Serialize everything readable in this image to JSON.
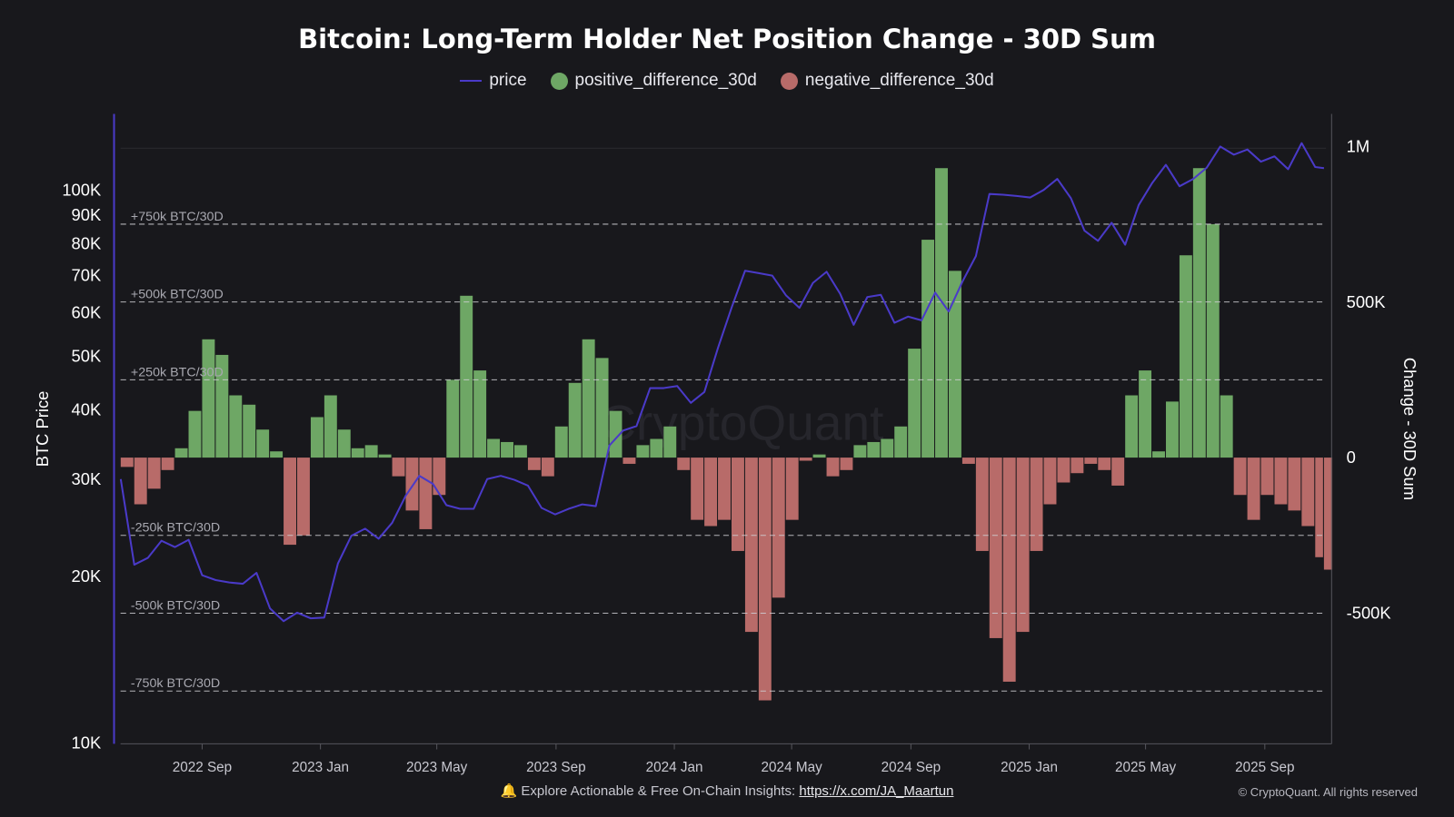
{
  "chart_data": {
    "type": "bar+line",
    "title": "Bitcoin: Long-Term Holder Net Position Change - 30D Sum",
    "legend": [
      "price",
      "positive_difference_30d",
      "negative_difference_30d"
    ],
    "legend_placement": "top-center",
    "left_axis": {
      "label": "BTC Price",
      "scale": "log",
      "range": [
        10000,
        150000
      ],
      "ticks": [
        "10K",
        "20K",
        "30K",
        "40K",
        "50K",
        "60K",
        "70K",
        "80K",
        "90K",
        "100K"
      ],
      "tick_values": [
        10000,
        20000,
        30000,
        40000,
        50000,
        60000,
        70000,
        80000,
        90000,
        100000
      ]
    },
    "right_axis": {
      "label": "Change - 30D Sum",
      "range": [
        -920000,
        1000000
      ],
      "ticks": [
        "1M",
        "500K",
        "0",
        "-500K"
      ],
      "tick_values": [
        1000000,
        500000,
        0,
        -500000
      ]
    },
    "x_axis": {
      "range": [
        "2022-06-09",
        "2025-11-01"
      ],
      "ticks": [
        "2022 Sep",
        "2023 Jan",
        "2023 May",
        "2023 Sep",
        "2024 Jan",
        "2024 May",
        "2024 Sep",
        "2025 Jan",
        "2025 May",
        "2025 Sep"
      ],
      "tick_dates": [
        "2022-09-01",
        "2023-01-01",
        "2023-05-01",
        "2023-09-01",
        "2024-01-01",
        "2024-05-01",
        "2024-09-01",
        "2025-01-01",
        "2025-05-01",
        "2025-09-01"
      ]
    },
    "reference_lines": [
      {
        "value": 750000,
        "label": "+750k BTC/30D"
      },
      {
        "value": 500000,
        "label": "+500k BTC/30D"
      },
      {
        "value": 250000,
        "label": "+250k BTC/30D"
      },
      {
        "value": -250000,
        "label": "-250k BTC/30D"
      },
      {
        "value": -500000,
        "label": "-500k BTC/30D"
      },
      {
        "value": -750000,
        "label": "-750k BTC/30D"
      }
    ],
    "colors": {
      "price": "#4a3ac8",
      "positive": "#6ea765",
      "negative": "#b86b69",
      "background": "#18181c"
    },
    "dates": [
      "2022-06-09",
      "2022-06-23",
      "2022-07-07",
      "2022-07-21",
      "2022-08-04",
      "2022-08-18",
      "2022-09-01",
      "2022-09-15",
      "2022-09-29",
      "2022-10-13",
      "2022-10-27",
      "2022-11-10",
      "2022-11-24",
      "2022-12-08",
      "2022-12-22",
      "2023-01-05",
      "2023-01-19",
      "2023-02-02",
      "2023-02-16",
      "2023-03-02",
      "2023-03-16",
      "2023-03-30",
      "2023-04-13",
      "2023-04-27",
      "2023-05-11",
      "2023-05-25",
      "2023-06-08",
      "2023-06-22",
      "2023-07-06",
      "2023-07-20",
      "2023-08-03",
      "2023-08-17",
      "2023-08-31",
      "2023-09-14",
      "2023-09-28",
      "2023-10-12",
      "2023-10-26",
      "2023-11-09",
      "2023-11-23",
      "2023-12-07",
      "2023-12-21",
      "2024-01-04",
      "2024-01-18",
      "2024-02-01",
      "2024-02-15",
      "2024-02-29",
      "2024-03-14",
      "2024-03-28",
      "2024-04-11",
      "2024-04-25",
      "2024-05-09",
      "2024-05-23",
      "2024-06-06",
      "2024-06-20",
      "2024-07-04",
      "2024-07-18",
      "2024-08-01",
      "2024-08-15",
      "2024-08-29",
      "2024-09-12",
      "2024-09-26",
      "2024-10-10",
      "2024-10-24",
      "2024-11-07",
      "2024-11-21",
      "2024-12-05",
      "2024-12-19",
      "2025-01-02",
      "2025-01-16",
      "2025-01-30",
      "2025-02-13",
      "2025-02-27",
      "2025-03-13",
      "2025-03-27",
      "2025-04-10",
      "2025-04-24",
      "2025-05-08",
      "2025-05-22",
      "2025-06-05",
      "2025-06-19",
      "2025-07-03",
      "2025-07-17",
      "2025-07-31",
      "2025-08-14",
      "2025-08-28",
      "2025-09-11",
      "2025-09-25",
      "2025-10-09",
      "2025-10-23",
      "2025-11-01"
    ],
    "price": [
      30000,
      21000,
      21600,
      23200,
      22600,
      23300,
      20100,
      19700,
      19500,
      19400,
      20300,
      17500,
      16600,
      17200,
      16800,
      16850,
      21100,
      23700,
      24400,
      23400,
      25000,
      28000,
      30400,
      29400,
      26900,
      26500,
      26500,
      30000,
      30400,
      29900,
      29200,
      26600,
      25900,
      26500,
      27000,
      26800,
      34500,
      36700,
      37400,
      43800,
      43800,
      44200,
      41200,
      43100,
      51800,
      61200,
      71400,
      70700,
      70000,
      64500,
      61200,
      67900,
      71100,
      64900,
      57000,
      64000,
      64600,
      57500,
      59000,
      58100,
      65200,
      60300,
      68200,
      75900,
      98300,
      98000,
      97500,
      96900,
      100000,
      104700,
      96600,
      84400,
      80900,
      87200,
      79600,
      93900,
      103000,
      111000,
      101500,
      104600,
      109600,
      119800,
      115800,
      118300,
      112500,
      115000,
      109000,
      121500,
      110000,
      109500
    ],
    "change_30d_sum": [
      -30000,
      -150000,
      -100000,
      -40000,
      30000,
      150000,
      380000,
      330000,
      200000,
      170000,
      90000,
      20000,
      -280000,
      -250000,
      130000,
      200000,
      90000,
      30000,
      40000,
      10000,
      -60000,
      -170000,
      -230000,
      -120000,
      250000,
      520000,
      280000,
      60000,
      50000,
      40000,
      -40000,
      -60000,
      100000,
      240000,
      380000,
      320000,
      150000,
      -20000,
      40000,
      60000,
      100000,
      -40000,
      -200000,
      -220000,
      -200000,
      -300000,
      -560000,
      -780000,
      -450000,
      -200000,
      -10000,
      10000,
      -60000,
      -40000,
      40000,
      50000,
      60000,
      100000,
      350000,
      700000,
      930000,
      600000,
      -20000,
      -300000,
      -580000,
      -720000,
      -560000,
      -300000,
      -150000,
      -80000,
      -50000,
      -20000,
      -40000,
      -90000,
      200000,
      280000,
      20000,
      180000,
      650000,
      930000,
      750000,
      200000,
      -120000,
      -200000,
      -120000,
      -150000,
      -170000,
      -220000,
      -320000,
      -360000
    ]
  },
  "watermark": "CryptoQuant",
  "footer": {
    "icon": "bell-icon",
    "text": "Explore Actionable & Free On-Chain Insights:",
    "link": "https://x.com/JA_Maartun"
  },
  "copyright": "© CryptoQuant. All rights reserved"
}
